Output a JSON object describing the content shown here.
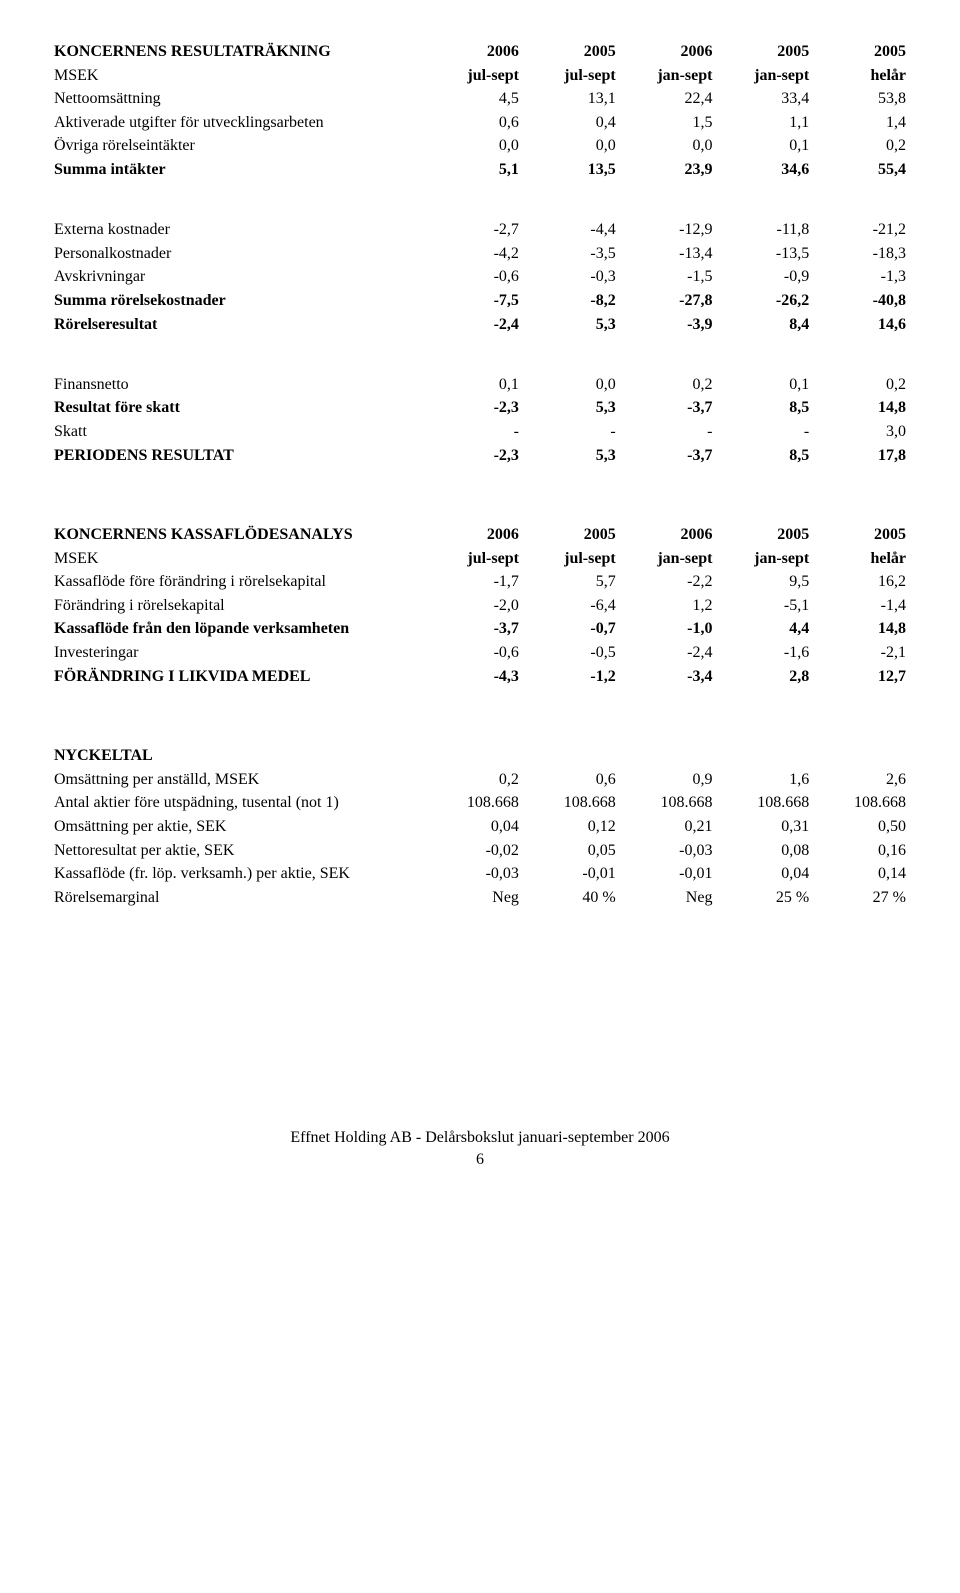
{
  "table1": {
    "header": {
      "title": "KONCERNENS RESULTATRÄKNING",
      "subtitle": "MSEK",
      "cols_year": [
        "2006",
        "2005",
        "2006",
        "2005",
        "2005"
      ],
      "cols_period": [
        "jul-sept",
        "jul-sept",
        "jan-sept",
        "jan-sept",
        "helår"
      ]
    },
    "rows": [
      {
        "label": "Nettoomsättning",
        "v": [
          "4,5",
          "13,1",
          "22,4",
          "33,4",
          "53,8"
        ]
      },
      {
        "label": "Aktiverade utgifter för utvecklingsarbeten",
        "v": [
          "0,6",
          "0,4",
          "1,5",
          "1,1",
          "1,4"
        ]
      },
      {
        "label": "Övriga rörelseintäkter",
        "v": [
          "0,0",
          "0,0",
          "0,0",
          "0,1",
          "0,2"
        ]
      },
      {
        "label": "Summa intäkter",
        "v": [
          "5,1",
          "13,5",
          "23,9",
          "34,6",
          "55,4"
        ],
        "bold": true
      },
      {
        "gap": true
      },
      {
        "label": "Externa kostnader",
        "v": [
          "-2,7",
          "-4,4",
          "-12,9",
          "-11,8",
          "-21,2"
        ]
      },
      {
        "label": "Personalkostnader",
        "v": [
          "-4,2",
          "-3,5",
          "-13,4",
          "-13,5",
          "-18,3"
        ]
      },
      {
        "label": "Avskrivningar",
        "v": [
          "-0,6",
          "-0,3",
          "-1,5",
          "-0,9",
          "-1,3"
        ]
      },
      {
        "label": "Summa rörelsekostnader",
        "v": [
          "-7,5",
          "-8,2",
          "-27,8",
          "-26,2",
          "-40,8"
        ],
        "bold": true
      },
      {
        "label": "Rörelseresultat",
        "v": [
          "-2,4",
          "5,3",
          "-3,9",
          "8,4",
          "14,6"
        ],
        "bold": true
      },
      {
        "gap": true
      },
      {
        "label": "Finansnetto",
        "v": [
          "0,1",
          "0,0",
          "0,2",
          "0,1",
          "0,2"
        ]
      },
      {
        "label": "Resultat före skatt",
        "v": [
          "-2,3",
          "5,3",
          "-3,7",
          "8,5",
          "14,8"
        ],
        "bold": true
      },
      {
        "label": "Skatt",
        "v": [
          "-",
          "-",
          "-",
          "-",
          "3,0"
        ]
      },
      {
        "label": "PERIODENS RESULTAT",
        "v": [
          "-2,3",
          "5,3",
          "-3,7",
          "8,5",
          "17,8"
        ],
        "bold": true
      }
    ]
  },
  "table2": {
    "header": {
      "title": "KONCERNENS KASSAFLÖDESANALYS",
      "subtitle": "MSEK",
      "cols_year": [
        "2006",
        "2005",
        "2006",
        "2005",
        "2005"
      ],
      "cols_period": [
        "jul-sept",
        "jul-sept",
        "jan-sept",
        "jan-sept",
        "helår"
      ]
    },
    "rows": [
      {
        "label": "Kassaflöde före förändring i rörelsekapital",
        "v": [
          "-1,7",
          "5,7",
          "-2,2",
          "9,5",
          "16,2"
        ]
      },
      {
        "label": "Förändring i rörelsekapital",
        "v": [
          "-2,0",
          "-6,4",
          "1,2",
          "-5,1",
          "-1,4"
        ]
      },
      {
        "label": "Kassaflöde från den löpande verksamheten",
        "v": [
          "-3,7",
          "-0,7",
          "-1,0",
          "4,4",
          "14,8"
        ],
        "bold": true
      },
      {
        "label": "Investeringar",
        "v": [
          "-0,6",
          "-0,5",
          "-2,4",
          "-1,6",
          "-2,1"
        ]
      },
      {
        "label": "FÖRÄNDRING I LIKVIDA MEDEL",
        "v": [
          "-4,3",
          "-1,2",
          "-3,4",
          "2,8",
          "12,7"
        ],
        "bold": true
      }
    ]
  },
  "table3": {
    "header": {
      "title": "NYCKELTAL"
    },
    "rows": [
      {
        "label": "Omsättning per anställd, MSEK",
        "v": [
          "0,2",
          "0,6",
          "0,9",
          "1,6",
          "2,6"
        ]
      },
      {
        "label": "Antal aktier före utspädning, tusental (not 1)",
        "v": [
          "108.668",
          "108.668",
          "108.668",
          "108.668",
          "108.668"
        ]
      },
      {
        "label": "Omsättning per aktie, SEK",
        "v": [
          "0,04",
          "0,12",
          "0,21",
          "0,31",
          "0,50"
        ]
      },
      {
        "label": "Nettoresultat per aktie, SEK",
        "v": [
          "-0,02",
          "0,05",
          "-0,03",
          "0,08",
          "0,16"
        ]
      },
      {
        "label": "Kassaflöde (fr. löp. verksamh.) per aktie, SEK",
        "v": [
          "-0,03",
          "-0,01",
          "-0,01",
          "0,04",
          "0,14"
        ]
      },
      {
        "label": "Rörelsemarginal",
        "v": [
          "Neg",
          "40 %",
          "Neg",
          "25 %",
          "27 %"
        ]
      }
    ]
  },
  "footer": {
    "line1": "Effnet Holding AB - Delårsbokslut januari-september 2006",
    "line2": "6"
  }
}
